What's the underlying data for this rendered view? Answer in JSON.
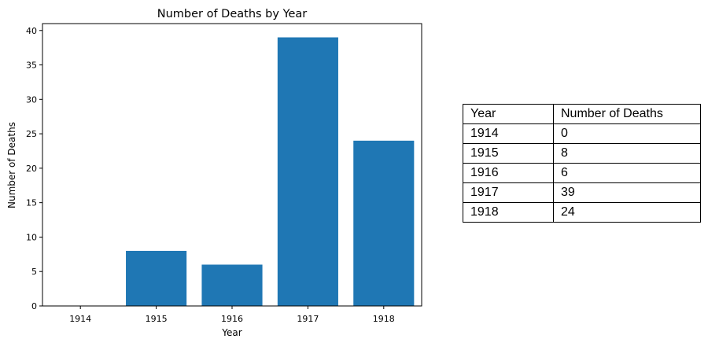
{
  "chart_data": {
    "type": "bar",
    "title": "Number of Deaths by Year",
    "xlabel": "Year",
    "ylabel": "Number of Deaths",
    "categories": [
      "1914",
      "1915",
      "1916",
      "1917",
      "1918"
    ],
    "values": [
      0,
      8,
      6,
      39,
      24
    ],
    "ylim": [
      0,
      41
    ],
    "yticks": [
      0,
      5,
      10,
      15,
      20,
      25,
      30,
      35,
      40
    ],
    "bar_color": "#1f77b4",
    "grid": false
  },
  "table": {
    "headers": [
      "Year",
      "Number of Deaths"
    ],
    "rows": [
      [
        "1914",
        "0"
      ],
      [
        "1915",
        "8"
      ],
      [
        "1916",
        "6"
      ],
      [
        "1917",
        "39"
      ],
      [
        "1918",
        "24"
      ]
    ]
  }
}
